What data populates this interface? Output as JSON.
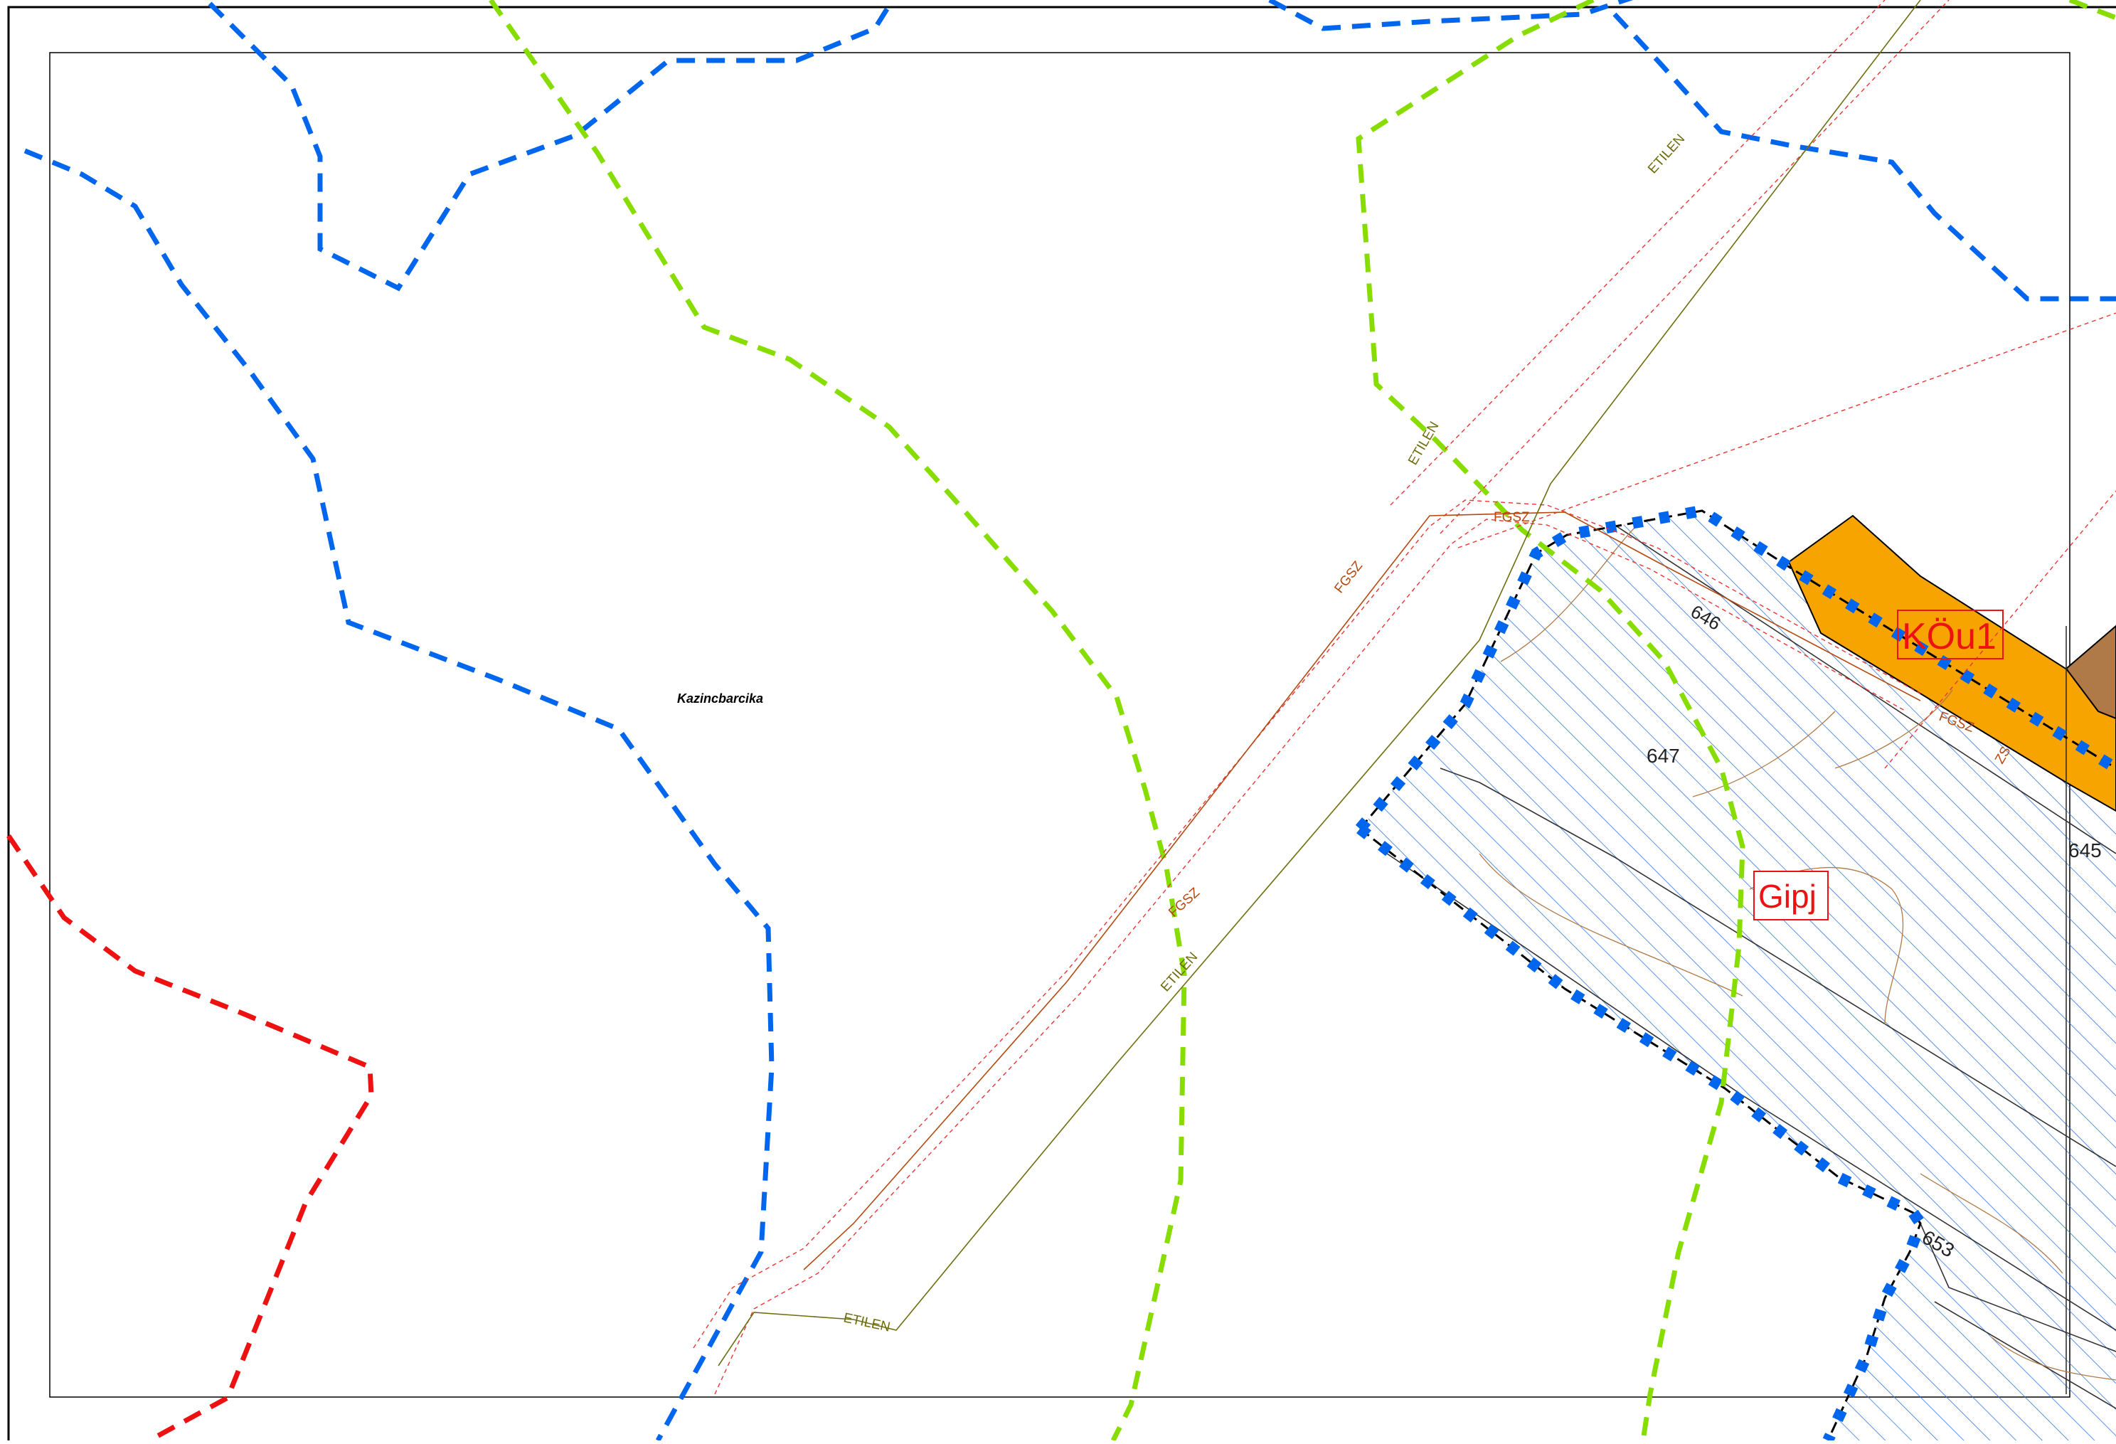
{
  "map": {
    "place_name": "Kazincbarcika",
    "zone_labels": {
      "gipj": "Gipj",
      "kou1": "KÖu1"
    },
    "parcel_numbers": {
      "p646": "646",
      "p647": "647",
      "p645": "645",
      "p653": "653"
    },
    "pipeline_labels": {
      "fgsz": "FGSZ",
      "etilen": "ETILEN",
      "zs": "ZS"
    },
    "colors": {
      "blue_boundary": "#0066ee",
      "green_boundary": "#88dd00",
      "red_boundary": "#ee1111",
      "fgsz_line": "#b44a12",
      "etilen_line": "#6e6e10",
      "hatch": "#3377dd",
      "kou1_fill": "#f7a400",
      "zone_label": "#ee1111",
      "brown_area": "#b07a48"
    }
  }
}
